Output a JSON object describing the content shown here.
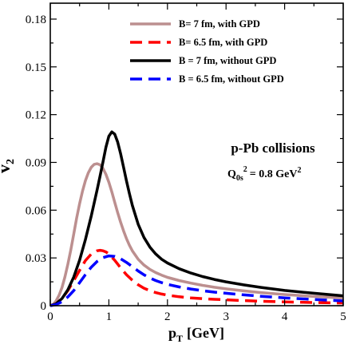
{
  "chart_data": {
    "type": "line",
    "title": "",
    "xlabel_main": "p",
    "xlabel_sub": "T",
    "xlabel_unit": "[GeV]",
    "ylabel_main": "v",
    "ylabel_sub": "2",
    "xlim": [
      0,
      5
    ],
    "ylim": [
      0,
      0.19
    ],
    "xticks": [
      0,
      1,
      2,
      3,
      4,
      5
    ],
    "xtick_labels": [
      "0",
      "1",
      "2",
      "3",
      "4",
      "5"
    ],
    "yticks": [
      0,
      0.03,
      0.06,
      0.09,
      0.12,
      0.15,
      0.18
    ],
    "ytick_labels": [
      "0",
      "0.03",
      "0.06",
      "0.09",
      "0.12",
      "0.15",
      "0.18"
    ],
    "grid": false,
    "legend_position": "top-right",
    "annotations": {
      "system": "p-Pb collisions",
      "q_main": "Q",
      "q_sub": "0s",
      "q_sup": "2",
      "q_value": "= 0.8 GeV",
      "q_value_sup": "2"
    },
    "series": [
      {
        "name": "B= 7 fm, with GPD",
        "color": "#bc8f8f",
        "dash": "solid",
        "x": [
          0,
          0.05,
          0.1,
          0.15,
          0.2,
          0.25,
          0.3,
          0.35,
          0.4,
          0.45,
          0.5,
          0.55,
          0.6,
          0.65,
          0.7,
          0.75,
          0.8,
          0.85,
          0.9,
          0.95,
          1.0,
          1.05,
          1.1,
          1.15,
          1.2,
          1.25,
          1.3,
          1.35,
          1.4,
          1.5,
          1.6,
          1.7,
          1.8,
          1.9,
          2.0,
          2.2,
          2.4,
          2.6,
          2.8,
          3.0,
          3.3,
          3.6,
          4.0,
          4.5,
          5.0
        ],
        "y": [
          0,
          0.0008,
          0.003,
          0.0065,
          0.0115,
          0.018,
          0.026,
          0.035,
          0.045,
          0.055,
          0.064,
          0.072,
          0.0785,
          0.0835,
          0.087,
          0.0888,
          0.0892,
          0.0885,
          0.0862,
          0.0825,
          0.0775,
          0.0715,
          0.065,
          0.0585,
          0.0525,
          0.047,
          0.0422,
          0.038,
          0.0345,
          0.0292,
          0.0255,
          0.0228,
          0.0208,
          0.0192,
          0.0178,
          0.0158,
          0.0142,
          0.0128,
          0.0116,
          0.0106,
          0.0093,
          0.0082,
          0.007,
          0.0058,
          0.0048
        ]
      },
      {
        "name": "B= 6.5 fm, with GPD",
        "color": "#ff0000",
        "dash": "dashed",
        "x": [
          0,
          0.1,
          0.2,
          0.3,
          0.4,
          0.5,
          0.6,
          0.7,
          0.8,
          0.85,
          0.9,
          0.95,
          1.0,
          1.1,
          1.2,
          1.3,
          1.4,
          1.5,
          1.6,
          1.7,
          1.8,
          1.9,
          2.0,
          2.2,
          2.4,
          2.6,
          2.8,
          3.0,
          3.3,
          3.6,
          4.0,
          4.5,
          5.0
        ],
        "y": [
          0,
          0.0012,
          0.0045,
          0.0095,
          0.0158,
          0.0222,
          0.0283,
          0.0325,
          0.0345,
          0.0348,
          0.0345,
          0.0338,
          0.0325,
          0.0285,
          0.0238,
          0.0195,
          0.016,
          0.0132,
          0.011,
          0.0094,
          0.0082,
          0.0073,
          0.0066,
          0.0056,
          0.0049,
          0.0044,
          0.004,
          0.0037,
          0.0032,
          0.0028,
          0.0024,
          0.002,
          0.0017
        ]
      },
      {
        "name": "B = 7 fm, without GPD",
        "color": "#000000",
        "dash": "solid",
        "x": [
          0,
          0.1,
          0.2,
          0.3,
          0.4,
          0.5,
          0.6,
          0.7,
          0.75,
          0.8,
          0.85,
          0.9,
          0.95,
          1.0,
          1.05,
          1.1,
          1.15,
          1.2,
          1.25,
          1.3,
          1.35,
          1.4,
          1.5,
          1.6,
          1.7,
          1.8,
          1.9,
          2.0,
          2.2,
          2.4,
          2.6,
          2.8,
          3.0,
          3.3,
          3.6,
          4.0,
          4.5,
          5.0
        ],
        "y": [
          0,
          0.0012,
          0.0045,
          0.01,
          0.018,
          0.0285,
          0.0415,
          0.0565,
          0.0645,
          0.0728,
          0.0815,
          0.0905,
          0.0995,
          0.1065,
          0.1092,
          0.1078,
          0.1028,
          0.0955,
          0.087,
          0.0785,
          0.0705,
          0.063,
          0.0512,
          0.0428,
          0.0368,
          0.0325,
          0.0292,
          0.0268,
          0.0232,
          0.0205,
          0.0183,
          0.0165,
          0.015,
          0.0131,
          0.0115,
          0.0096,
          0.0078,
          0.0062
        ]
      },
      {
        "name": "B = 6.5 fm, without GPD",
        "color": "#0000ff",
        "dash": "dashed",
        "x": [
          0,
          0.1,
          0.2,
          0.3,
          0.4,
          0.5,
          0.6,
          0.7,
          0.8,
          0.9,
          1.0,
          1.1,
          1.2,
          1.3,
          1.4,
          1.5,
          1.6,
          1.7,
          1.8,
          1.9,
          2.0,
          2.2,
          2.4,
          2.6,
          2.8,
          3.0,
          3.3,
          3.6,
          4.0,
          4.5,
          5.0
        ],
        "y": [
          0,
          0.0007,
          0.0025,
          0.0055,
          0.0095,
          0.0145,
          0.0195,
          0.0242,
          0.0278,
          0.0302,
          0.0313,
          0.031,
          0.0295,
          0.0272,
          0.0245,
          0.0218,
          0.0194,
          0.0174,
          0.0158,
          0.0145,
          0.0134,
          0.0118,
          0.0105,
          0.0094,
          0.0085,
          0.0078,
          0.0068,
          0.0059,
          0.0049,
          0.0039,
          0.003
        ]
      }
    ]
  }
}
